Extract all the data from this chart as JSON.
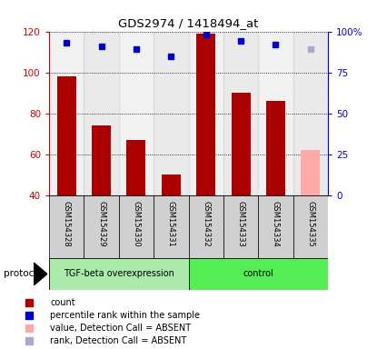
{
  "title": "GDS2974 / 1418494_at",
  "samples": [
    "GSM154328",
    "GSM154329",
    "GSM154330",
    "GSM154331",
    "GSM154332",
    "GSM154333",
    "GSM154334",
    "GSM154335"
  ],
  "bar_values": [
    98,
    74,
    67,
    50,
    119,
    90,
    86,
    62
  ],
  "bar_colors": [
    "#aa0000",
    "#aa0000",
    "#aa0000",
    "#aa0000",
    "#aa0000",
    "#aa0000",
    "#aa0000",
    "#ffaaaa"
  ],
  "rank_values": [
    93,
    91,
    89,
    85,
    98,
    94,
    92,
    89
  ],
  "rank_colors": [
    "#0000cc",
    "#0000cc",
    "#0000cc",
    "#0000cc",
    "#0000cc",
    "#0000cc",
    "#0000cc",
    "#aaaacc"
  ],
  "ylim_left": [
    40,
    120
  ],
  "ylim_right": [
    0,
    100
  ],
  "yticks_left": [
    40,
    60,
    80,
    100,
    120
  ],
  "yticks_right": [
    0,
    25,
    50,
    75,
    100
  ],
  "ytick_labels_right": [
    "0",
    "25",
    "50",
    "75",
    "100%"
  ],
  "protocol_groups": [
    {
      "label": "TGF-beta overexpression",
      "start": 0,
      "end": 4,
      "color": "#aaeaaa"
    },
    {
      "label": "control",
      "start": 4,
      "end": 8,
      "color": "#55ee55"
    }
  ],
  "protocol_label": "protocol",
  "left_axis_color": "#cc0000",
  "right_axis_color": "#0000cc",
  "bar_width": 0.55,
  "legend_items": [
    {
      "label": "count",
      "color": "#aa0000"
    },
    {
      "label": "percentile rank within the sample",
      "color": "#0000cc"
    },
    {
      "label": "value, Detection Call = ABSENT",
      "color": "#ffaaaa"
    },
    {
      "label": "rank, Detection Call = ABSENT",
      "color": "#aaaacc"
    }
  ]
}
